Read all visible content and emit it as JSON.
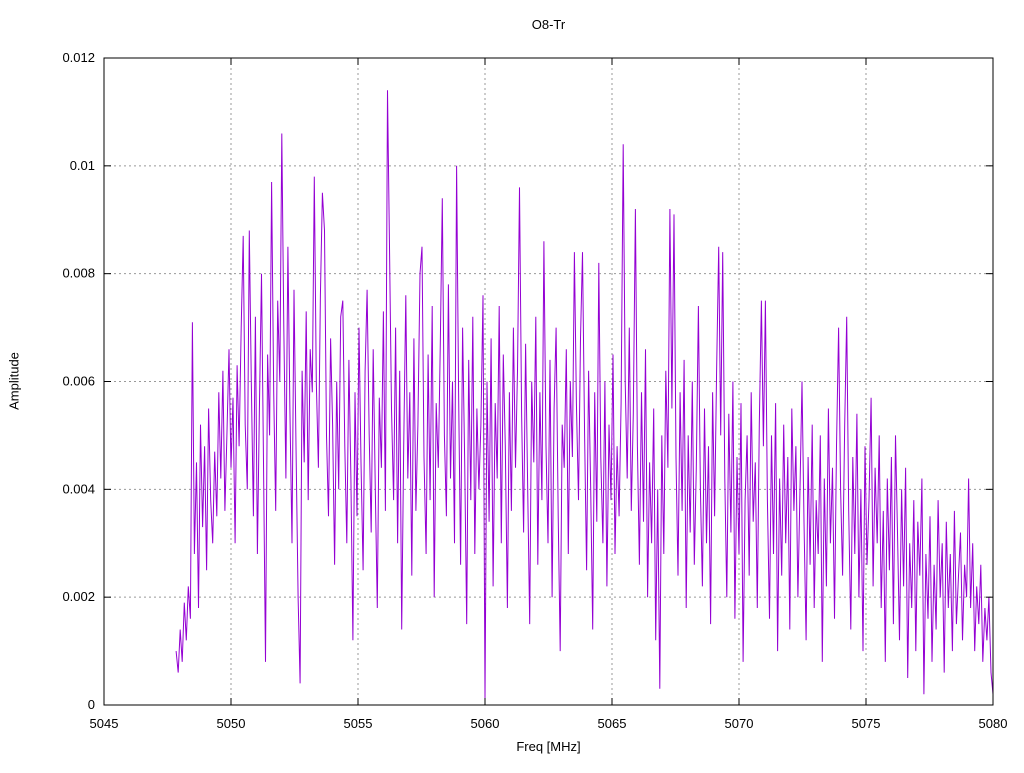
{
  "chart_data": {
    "type": "line",
    "title": "O8-Tr",
    "xlabel": "Freq [MHz]",
    "ylabel": "Amplitude",
    "xlim": [
      5045,
      5080
    ],
    "ylim": [
      0,
      0.012
    ],
    "x_ticks": [
      5045,
      5050,
      5055,
      5060,
      5065,
      5070,
      5075,
      5080
    ],
    "x_tick_labels": [
      "5045",
      "5050",
      "5055",
      "5060",
      "5065",
      "5070",
      "5075",
      "5080"
    ],
    "y_ticks": [
      0,
      0.002,
      0.004,
      0.006,
      0.008,
      0.01,
      0.012
    ],
    "y_tick_labels": [
      "0",
      "0.002",
      "0.004",
      "0.006",
      "0.008",
      "0.01",
      "0.012"
    ],
    "grid": true,
    "grid_style": "dotted",
    "grid_color": "#999999",
    "axis_color": "#000000",
    "legend": "none",
    "series": [
      {
        "name": "O8-Tr",
        "color": "#9400d3",
        "x_start": 5047.84,
        "x_step": 0.08,
        "y_scale": 0.0001,
        "y": [
          10,
          6,
          14,
          8,
          19,
          12,
          22,
          16,
          71,
          28,
          45,
          18,
          52,
          33,
          48,
          25,
          55,
          38,
          30,
          47,
          35,
          58,
          42,
          62,
          36,
          50,
          66,
          44,
          57,
          30,
          63,
          48,
          70,
          87,
          52,
          40,
          88,
          60,
          35,
          72,
          28,
          55,
          80,
          45,
          8,
          65,
          50,
          97,
          58,
          36,
          75,
          60,
          106,
          70,
          42,
          85,
          55,
          30,
          77,
          48,
          20,
          4,
          62,
          45,
          73,
          38,
          66,
          58,
          98,
          60,
          44,
          76,
          95,
          88,
          50,
          35,
          68,
          52,
          26,
          60,
          40,
          72,
          75,
          48,
          30,
          64,
          42,
          12,
          58,
          35,
          70,
          45,
          25,
          62,
          77,
          50,
          32,
          66,
          40,
          18,
          57,
          44,
          73,
          36,
          114,
          85,
          55,
          38,
          70,
          30,
          62,
          14,
          48,
          76,
          42,
          58,
          24,
          68,
          36,
          52,
          80,
          85,
          46,
          28,
          65,
          38,
          74,
          20,
          56,
          44,
          67,
          94,
          50,
          35,
          78,
          42,
          60,
          30,
          100,
          58,
          26,
          70,
          45,
          15,
          64,
          38,
          72,
          28,
          55,
          40,
          52,
          76,
          1,
          60,
          34,
          68,
          22,
          56,
          42,
          74,
          30,
          65,
          48,
          18,
          58,
          36,
          70,
          44,
          62,
          96,
          54,
          32,
          67,
          40,
          15,
          60,
          45,
          72,
          26,
          58,
          38,
          86,
          48,
          30,
          64,
          20,
          55,
          70,
          35,
          10,
          52,
          44,
          66,
          28,
          60,
          46,
          84,
          56,
          38,
          68,
          84,
          50,
          25,
          62,
          40,
          14,
          58,
          34,
          82,
          46,
          30,
          60,
          22,
          52,
          38,
          65,
          28,
          48,
          35,
          56,
          104,
          60,
          42,
          70,
          36,
          54,
          92,
          48,
          26,
          58,
          34,
          66,
          20,
          45,
          30,
          55,
          12,
          40,
          3,
          50,
          28,
          62,
          44,
          92,
          55,
          91,
          46,
          24,
          58,
          36,
          64,
          18,
          50,
          32,
          60,
          26,
          44,
          74,
          40,
          22,
          55,
          30,
          48,
          15,
          58,
          35,
          62,
          85,
          50,
          84,
          42,
          20,
          54,
          32,
          60,
          16,
          46,
          28,
          56,
          8,
          38,
          50,
          24,
          58,
          34,
          45,
          18,
          52,
          75,
          48,
          75,
          38,
          16,
          50,
          28,
          56,
          10,
          42,
          24,
          52,
          30,
          46,
          14,
          55,
          36,
          48,
          20,
          40,
          60,
          34,
          12,
          46,
          26,
          52,
          18,
          38,
          28,
          50,
          8,
          42,
          22,
          55,
          30,
          44,
          16,
          48,
          70,
          40,
          24,
          52,
          72,
          36,
          14,
          46,
          28,
          54,
          20,
          40,
          10,
          48,
          26,
          38,
          57,
          22,
          44,
          30,
          50,
          18,
          36,
          8,
          42,
          25,
          46,
          15,
          50,
          32,
          12,
          40,
          22,
          44,
          5,
          30,
          18,
          38,
          10,
          34,
          24,
          42,
          2,
          28,
          16,
          35,
          8,
          26,
          14,
          38,
          20,
          30,
          6,
          34,
          18,
          28,
          10,
          36,
          15,
          24,
          32,
          12,
          26,
          20,
          42,
          18,
          30,
          10,
          22,
          15,
          26,
          8,
          18,
          12,
          20,
          6,
          2
        ]
      }
    ]
  }
}
